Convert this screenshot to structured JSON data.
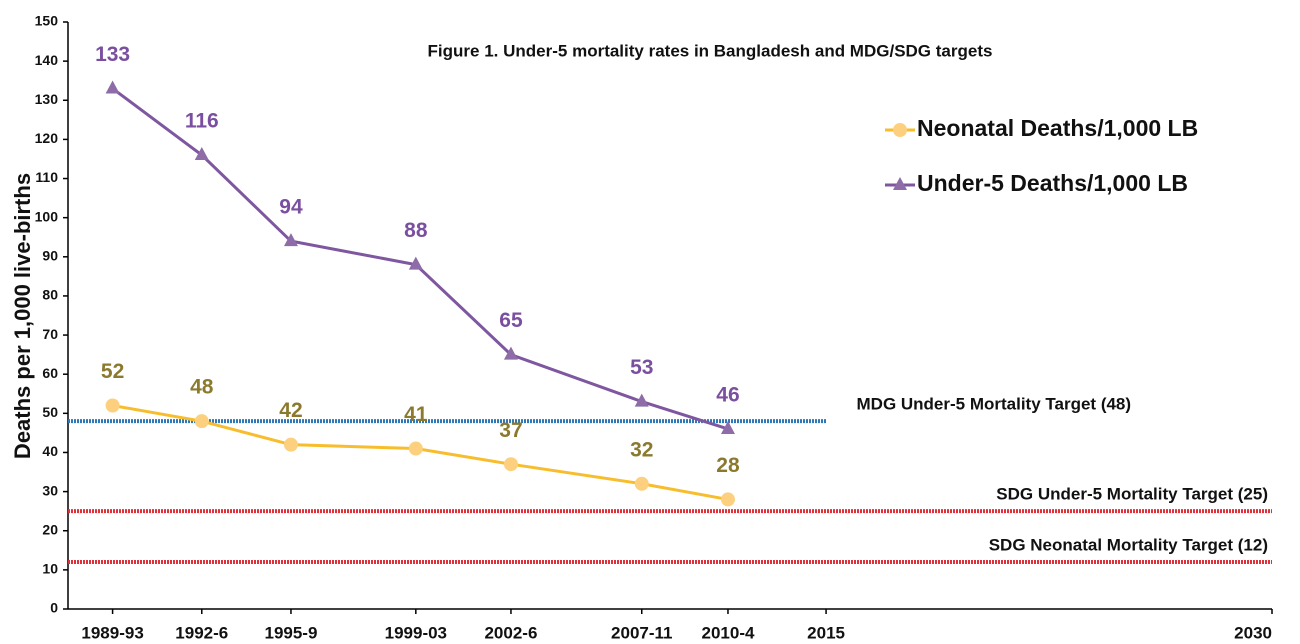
{
  "chart_data": {
    "type": "line",
    "title": "Figure 1.  Under-5 mortality rates in Bangladesh and MDG/SDG targets",
    "y_label": "Deaths per  1,000 live-births",
    "xlim": [
      1989.5,
      2030
    ],
    "xticks": [
      {
        "value": 1991,
        "label": "1989-93"
      },
      {
        "value": 1994,
        "label": "1992-6"
      },
      {
        "value": 1997,
        "label": "1995-9"
      },
      {
        "value": 2001.2,
        "label": "1999-03"
      },
      {
        "value": 2004.4,
        "label": "2002-6"
      },
      {
        "value": 2008.8,
        "label": "2007-11"
      },
      {
        "value": 2011.7,
        "label": "2010-4"
      },
      2015,
      2030
    ],
    "x": [
      1991,
      1994,
      1997,
      2001.2,
      2004.4,
      2008.8,
      2011.7
    ],
    "ylim": [
      0,
      150
    ],
    "yticks": [
      0,
      10,
      20,
      30,
      40,
      50,
      60,
      70,
      80,
      90,
      100,
      110,
      120,
      130,
      140,
      150
    ],
    "series": [
      {
        "name": "Neonatal Deaths/1,000 LB",
        "color": "#f7bd2c",
        "marker_color": "#fdd07f",
        "label_color": "#8b7a2e",
        "marker": "circle",
        "values": [
          52,
          48,
          42,
          41,
          37,
          32,
          28
        ]
      },
      {
        "name": "Under-5 Deaths/1,000 LB",
        "color": "#7e57a0",
        "marker_color": "#8e6ca8",
        "label_color": "#7b4fa0",
        "marker": "triangle",
        "values": [
          133,
          116,
          94,
          88,
          65,
          53,
          46
        ]
      }
    ],
    "reference_lines": [
      {
        "label": "MDG Under-5 Mortality Target (48)",
        "value": 48,
        "x_end": 2015,
        "color": "#2f78b7"
      },
      {
        "label": "SDG Under-5 Mortality Target (25)",
        "value": 25,
        "x_end": 2030,
        "color": "#e0303a"
      },
      {
        "label": "SDG Neonatal Mortality Target (12)",
        "value": 12,
        "x_end": 2030,
        "color": "#e0303a"
      }
    ]
  }
}
